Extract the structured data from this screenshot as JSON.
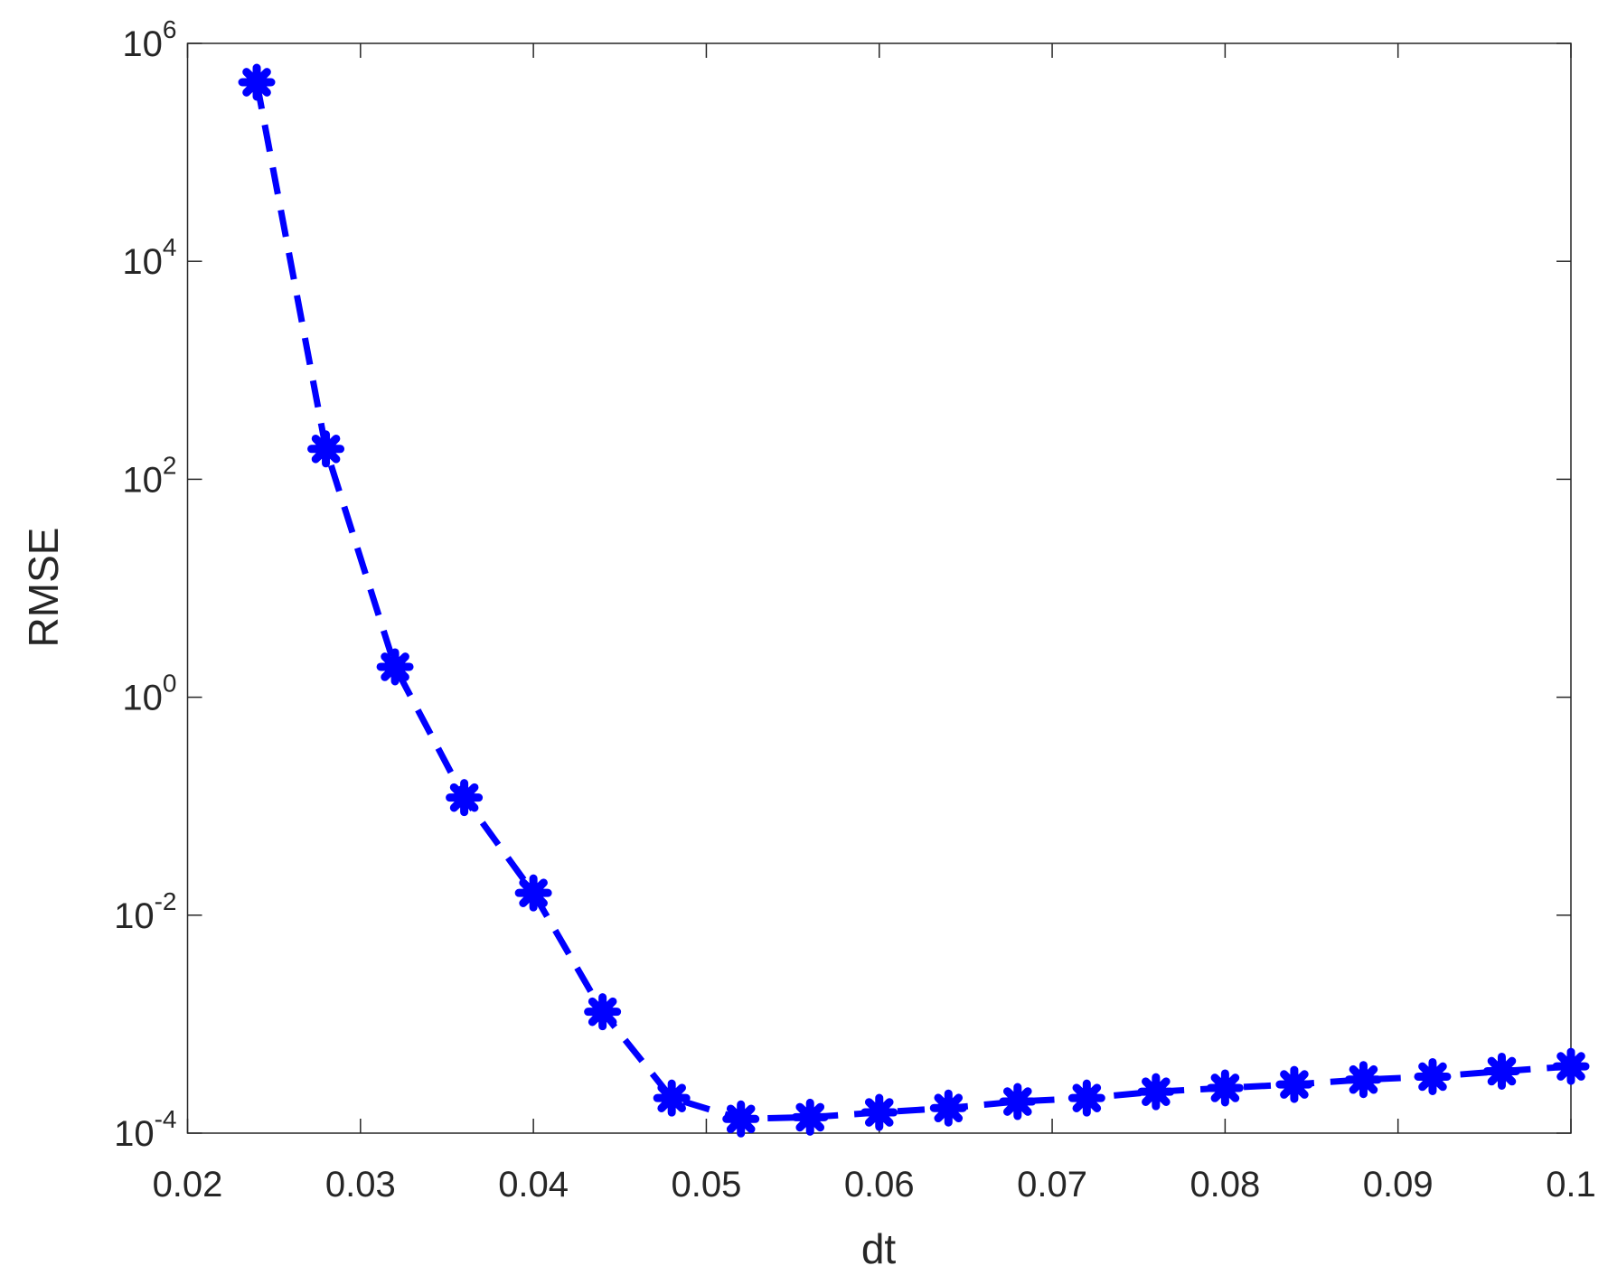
{
  "chart_data": {
    "type": "line",
    "xlabel": "dt",
    "ylabel": "RMSE",
    "x": [
      0.024,
      0.028,
      0.032,
      0.036,
      0.04,
      0.044,
      0.048,
      0.052,
      0.056,
      0.06,
      0.064,
      0.068,
      0.072,
      0.076,
      0.08,
      0.084,
      0.088,
      0.092,
      0.096,
      0.1
    ],
    "series": [
      {
        "color": "#0000ff",
        "linestyle": "dashed",
        "marker": "asterisk",
        "values": [
          440000,
          190,
          1.9,
          0.12,
          0.016,
          0.0013,
          0.00021,
          0.000135,
          0.00014,
          0.000155,
          0.00017,
          0.000195,
          0.00021,
          0.00024,
          0.00026,
          0.00028,
          0.00031,
          0.00033,
          0.00037,
          0.00041
        ]
      }
    ],
    "xlim": [
      0.02,
      0.1
    ],
    "xticks": [
      0.02,
      0.03,
      0.04,
      0.05,
      0.06,
      0.07,
      0.08,
      0.09,
      0.1
    ],
    "ylim": [
      0.0001,
      1000000
    ],
    "yscale": "log",
    "yticks": [
      {
        "value": 0.0001,
        "label": "10",
        "exponent": "-4"
      },
      {
        "value": 0.01,
        "label": "10",
        "exponent": "-2"
      },
      {
        "value": 1,
        "label": "10",
        "exponent": "0"
      },
      {
        "value": 100,
        "label": "10",
        "exponent": "2"
      },
      {
        "value": 10000,
        "label": "10",
        "exponent": "4"
      },
      {
        "value": 1000000,
        "label": "10",
        "exponent": "6"
      }
    ],
    "grid": false
  }
}
